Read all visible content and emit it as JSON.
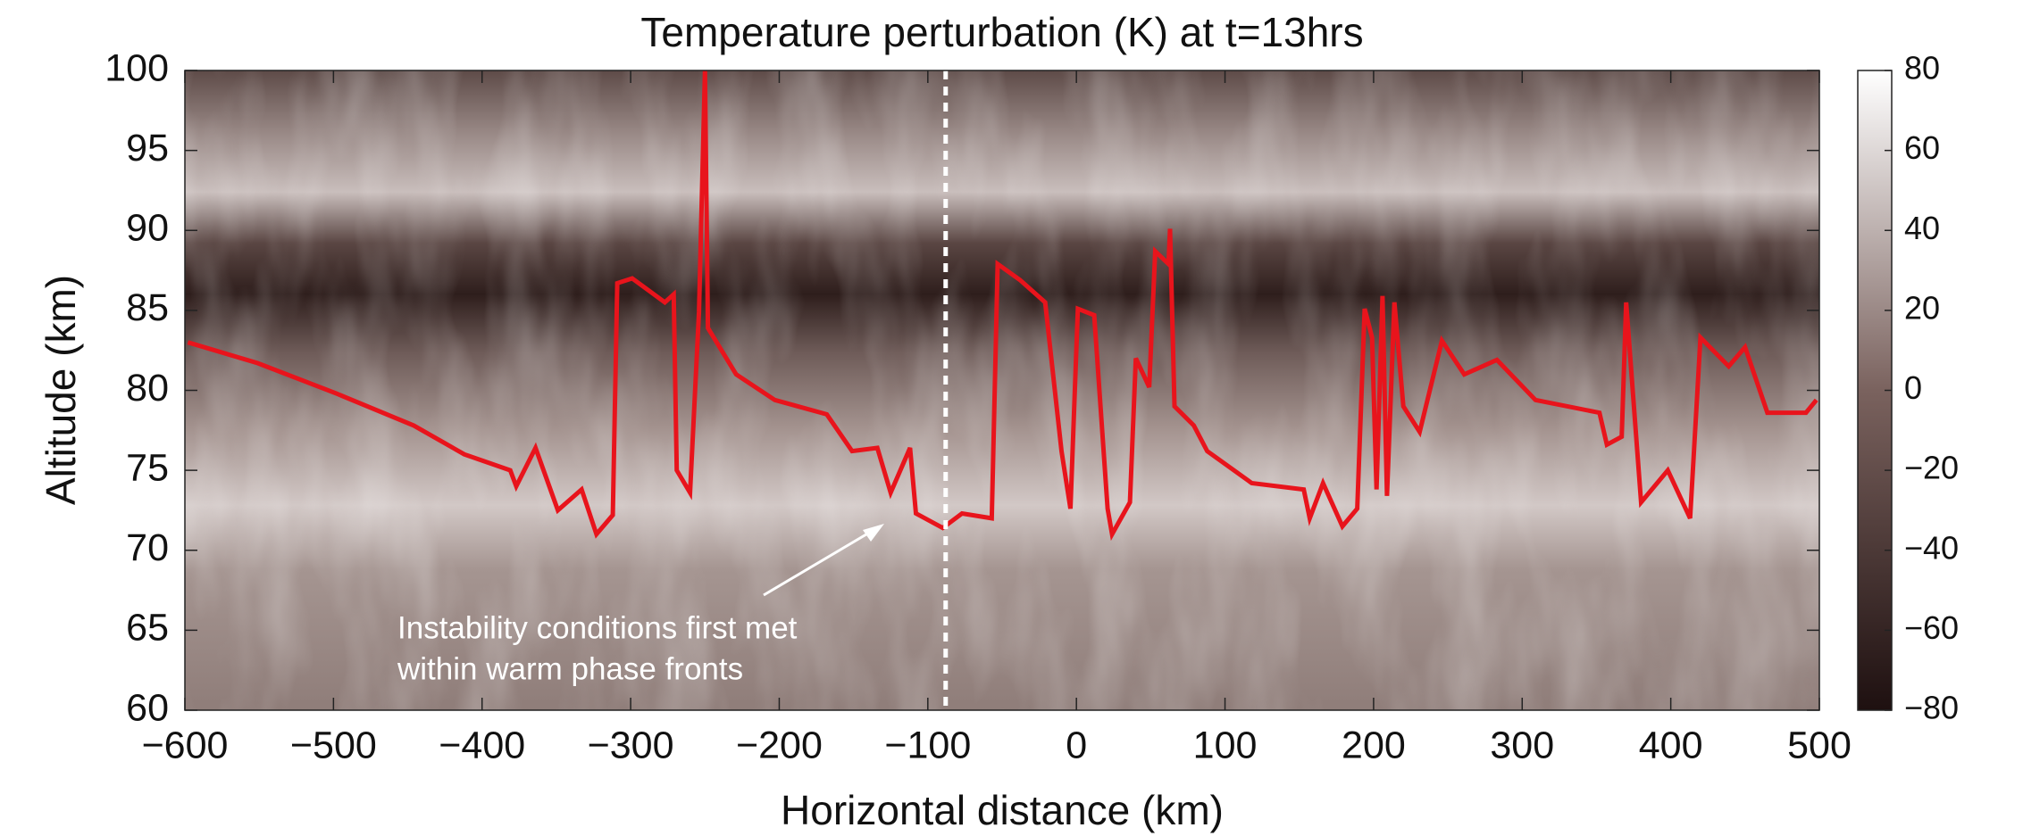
{
  "chart_data": {
    "type": "line",
    "title": "Temperature perturbation (K) at t=13hrs",
    "xlabel": "Horizontal distance (km)",
    "ylabel": "Altitude (km)",
    "color": "#e8141c",
    "x": [
      -598,
      -551,
      -498,
      -446,
      -412,
      -381,
      -377,
      -364,
      -349,
      -333,
      -323,
      -312,
      -309,
      -299,
      -277,
      -271,
      -269,
      -260,
      -254,
      -250,
      -248,
      -229,
      -203,
      -168,
      -151,
      -134,
      -125,
      -112,
      -108,
      -90,
      -77,
      -57,
      -53,
      -38,
      -21,
      -10,
      -4,
      1,
      12,
      21,
      24,
      36,
      40,
      49,
      53,
      62,
      63,
      66,
      79,
      88,
      118,
      153,
      157,
      166,
      179,
      189,
      194,
      199,
      202,
      206,
      209,
      214,
      220,
      231,
      246,
      261,
      283,
      309,
      352,
      357,
      367,
      370,
      380,
      398,
      413,
      420,
      439,
      450,
      465,
      491,
      498
    ],
    "values": [
      83,
      81.7,
      79.8,
      77.8,
      76,
      75,
      74,
      76.4,
      72.5,
      73.8,
      71,
      72.2,
      86.7,
      87,
      85.5,
      86,
      75,
      73.6,
      84.9,
      100,
      83.9,
      81,
      79.4,
      78.5,
      76.2,
      76.4,
      73.6,
      76.4,
      72.3,
      71.4,
      72.3,
      72,
      87.9,
      86.9,
      85.5,
      76.2,
      72.6,
      85.1,
      84.7,
      72.6,
      71,
      73,
      82,
      80.2,
      88.7,
      87.9,
      90.1,
      79,
      77.8,
      76.2,
      74.2,
      73.8,
      72,
      74.2,
      71.5,
      72.6,
      85.1,
      83.3,
      73.8,
      85.9,
      73.4,
      85.5,
      79,
      77.4,
      83.1,
      81,
      81.9,
      79.4,
      78.6,
      76.6,
      77.1,
      85.5,
      73,
      75,
      72,
      83.3,
      81.5,
      82.7,
      78.6,
      78.6,
      79.4
    ],
    "xlim": [
      -600,
      500
    ],
    "ylim": [
      60,
      100
    ],
    "xticks": [
      {
        "value": -600,
        "label": "−600"
      },
      {
        "value": -500,
        "label": "−500"
      },
      {
        "value": -400,
        "label": "−400"
      },
      {
        "value": -300,
        "label": "−300"
      },
      {
        "value": -200,
        "label": "−200"
      },
      {
        "value": -100,
        "label": "−100"
      },
      0,
      100,
      200,
      300,
      400,
      500
    ],
    "yticks": [
      60,
      65,
      70,
      75,
      80,
      85,
      90,
      95,
      100
    ],
    "reference_x": -88,
    "annotation": [
      "Instability conditions first met",
      "within warm phase fronts"
    ],
    "colorbar": {
      "clim": [
        -80,
        80
      ],
      "ticks": [
        {
          "value": -80,
          "label": "−80"
        },
        {
          "value": -60,
          "label": "−60"
        },
        {
          "value": -40,
          "label": "−40"
        },
        {
          "value": -20,
          "label": "−20"
        },
        0,
        20,
        40,
        60,
        80
      ],
      "colormap": [
        "#1e1010",
        "#7a625e",
        "#ffffff"
      ]
    }
  }
}
